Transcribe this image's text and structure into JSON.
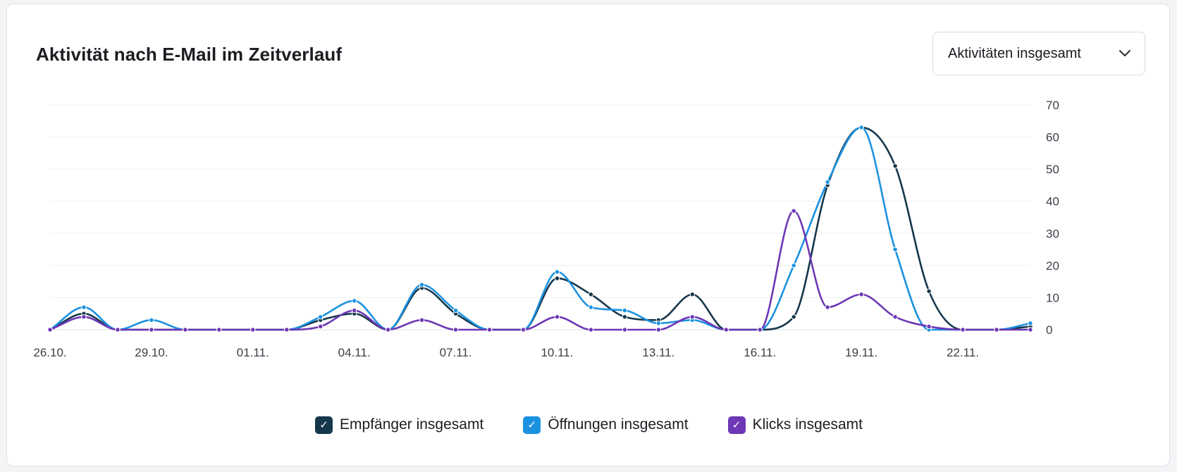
{
  "header": {
    "title": "Aktivität nach E-Mail im Zeitverlauf",
    "dropdown_label": "Aktivitäten insgesamt",
    "dropdown_icon": "chevron-down-icon"
  },
  "legend": [
    {
      "label": "Empfänger insgesamt",
      "color": "#15374a",
      "checked": true,
      "icon": "checkmark-icon"
    },
    {
      "label": "Öffnungen insgesamt",
      "color": "#1b92e0",
      "checked": true,
      "icon": "checkmark-icon"
    },
    {
      "label": "Klicks insgesamt",
      "color": "#6d37b5",
      "checked": true,
      "icon": "checkmark-icon"
    }
  ],
  "chart_data": {
    "type": "line",
    "title": "Aktivität nach E-Mail im Zeitverlauf",
    "xlabel": "",
    "ylabel": "",
    "ylim": [
      0,
      70
    ],
    "yticks": [
      "0",
      "10",
      "20",
      "30",
      "40",
      "50",
      "60",
      "70"
    ],
    "ytick_values": [
      0,
      10,
      20,
      30,
      40,
      50,
      60,
      70
    ],
    "y_axis_side": "right",
    "grid": true,
    "legend_position": "bottom",
    "x_tick_labels": [
      "26.10.",
      "29.10.",
      "01.11.",
      "04.11.",
      "07.11.",
      "10.11.",
      "13.11.",
      "16.11.",
      "19.11.",
      "22.11."
    ],
    "x_tick_indices": [
      0,
      3,
      6,
      9,
      12,
      15,
      18,
      21,
      24,
      27
    ],
    "x": [
      "26.10.",
      "27.10.",
      "28.10.",
      "29.10.",
      "30.10.",
      "31.10.",
      "01.11.",
      "02.11.",
      "03.11.",
      "04.11.",
      "05.11.",
      "06.11.",
      "07.11.",
      "08.11.",
      "09.11.",
      "10.11.",
      "11.11.",
      "12.11.",
      "13.11.",
      "14.11.",
      "15.11.",
      "16.11.",
      "17.11.",
      "18.11.",
      "19.11.",
      "20.11.",
      "21.11.",
      "22.11.",
      "23.11.",
      "24.11."
    ],
    "series": [
      {
        "name": "Empfänger insgesamt",
        "color": "#15374a",
        "values": [
          0,
          5,
          0,
          0,
          0,
          0,
          0,
          0,
          3,
          5,
          0,
          13,
          5,
          0,
          0,
          16,
          11,
          4,
          3,
          11,
          0,
          0,
          4,
          45,
          63,
          51,
          12,
          0,
          0,
          1
        ]
      },
      {
        "name": "Öffnungen insgesamt",
        "color": "#1b92e0",
        "values": [
          0,
          7,
          0,
          3,
          0,
          0,
          0,
          0,
          4,
          9,
          0,
          14,
          6,
          0,
          0,
          18,
          7,
          6,
          2,
          3,
          0,
          0,
          20,
          46,
          63,
          25,
          0,
          0,
          0,
          2
        ]
      },
      {
        "name": "Klicks insgesamt",
        "color": "#6d37b5",
        "values": [
          0,
          4,
          0,
          0,
          0,
          0,
          0,
          0,
          1,
          6,
          0,
          3,
          0,
          0,
          0,
          4,
          0,
          0,
          0,
          4,
          0,
          0,
          37,
          7,
          11,
          4,
          1,
          0,
          0,
          0
        ]
      }
    ]
  }
}
